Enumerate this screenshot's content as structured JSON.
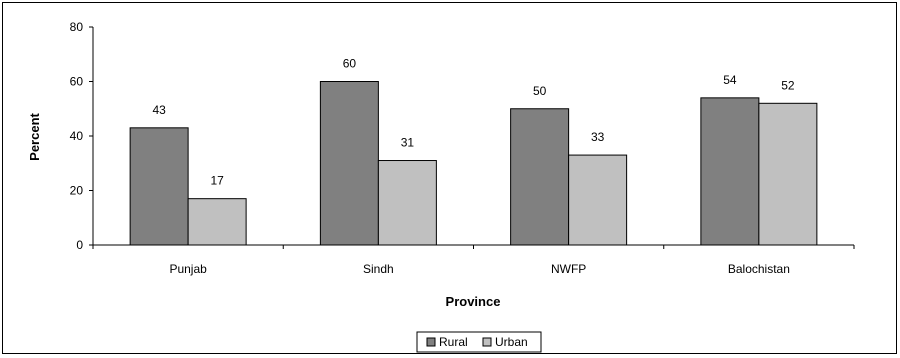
{
  "chart_data": {
    "type": "bar",
    "title": "",
    "xlabel": "Province",
    "ylabel": "Percent",
    "categories": [
      "Punjab",
      "Sindh",
      "NWFP",
      "Balochistan"
    ],
    "series": [
      {
        "name": "Rural",
        "values": [
          43,
          60,
          50,
          54
        ],
        "color": "#808080"
      },
      {
        "name": "Urban",
        "values": [
          17,
          31,
          33,
          52
        ],
        "color": "#c0c0c0"
      }
    ],
    "ylim": [
      0,
      80
    ],
    "yticks": [
      0,
      20,
      40,
      60,
      80
    ],
    "grid": false,
    "legend": "bottom-center"
  }
}
